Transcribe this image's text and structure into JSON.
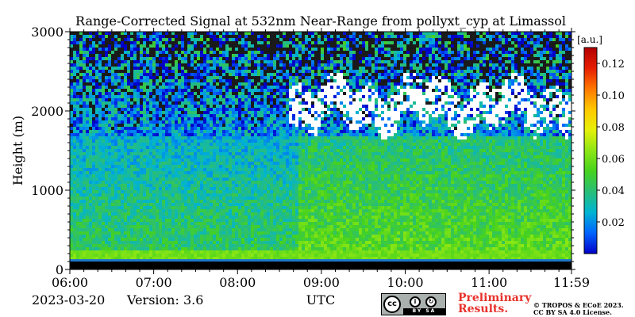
{
  "chart_data": {
    "type": "heatmap",
    "title": "Range-Corrected Signal at 532nm Near-Range from pollyxt_cyp at Limassol",
    "xlabel": "UTC",
    "ylabel": "Height (m)",
    "x_ticks": [
      "06:00",
      "07:00",
      "08:00",
      "09:00",
      "10:00",
      "11:00",
      "11:59"
    ],
    "xlim": [
      "06:00",
      "11:59"
    ],
    "y_ticks": [
      0,
      1000,
      2000,
      3000
    ],
    "ylim": [
      0,
      3000
    ],
    "colorbar": {
      "label": "[a.u.]",
      "ticks": [
        0.02,
        0.04,
        0.06,
        0.08,
        0.1,
        0.12
      ],
      "tick_labels": [
        "0.02",
        "0.04",
        "0.06",
        "0.08",
        "0.10",
        "0.12"
      ],
      "range": [
        0.0,
        0.13
      ],
      "colormap": [
        "#0000c8",
        "#0064ff",
        "#00b4d2",
        "#28be78",
        "#46d21e",
        "#8ce614",
        "#e6f00a",
        "#ffc800",
        "#ff7800",
        "#e61e00",
        "#b40000"
      ]
    },
    "features": {
      "surface_layer": {
        "height_range": [
          0,
          100
        ],
        "value": 0.0
      },
      "boundary_layer_top_m": 1700,
      "cloud_layer": {
        "time_range": [
          "08:35",
          "11:59"
        ],
        "height_range": [
          1650,
          2500
        ],
        "saturated_color": "#ffffff"
      }
    }
  },
  "footer": {
    "date": "2023-03-20",
    "version": "Version: 3.6",
    "preliminary_line1": "Preliminary",
    "preliminary_line2": "Results.",
    "copyright_line1": "© TROPOS & ECoE 2023.",
    "copyright_line2": "CC BY SA 4.0 License.",
    "license_badge": {
      "cc": "cc",
      "by": "BY",
      "sa": "SA"
    }
  }
}
